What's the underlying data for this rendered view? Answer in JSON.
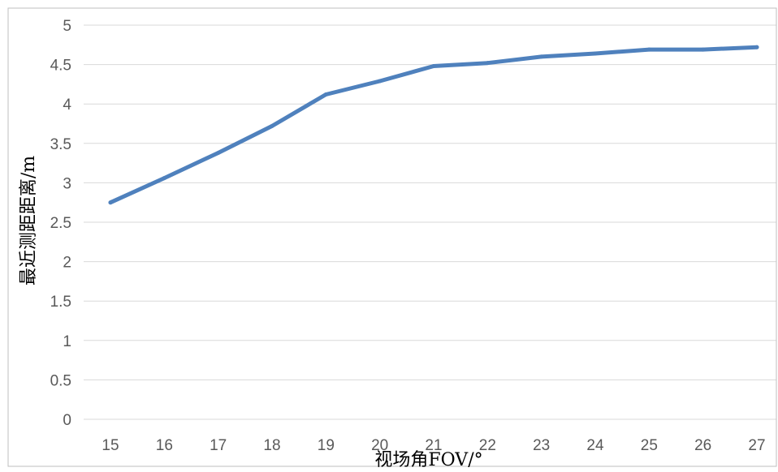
{
  "chart_data": {
    "type": "line",
    "title": "",
    "xlabel": "视场角FOV/°",
    "ylabel": "最近测距距离/m",
    "x": [
      15,
      16,
      17,
      18,
      19,
      20,
      21,
      22,
      23,
      24,
      25,
      26,
      27
    ],
    "series": [
      {
        "values": [
          2.75,
          3.06,
          3.38,
          3.72,
          4.12,
          4.29,
          4.48,
          4.52,
          4.6,
          4.64,
          4.69,
          4.69,
          4.72
        ],
        "color": "#4f81bd"
      }
    ],
    "ylim": [
      0,
      5
    ],
    "yticks": [
      "0",
      "0.5",
      "1",
      "1.5",
      "2",
      "2.5",
      "3",
      "3.5",
      "4",
      "4.5",
      "5"
    ],
    "xticks": [
      "15",
      "16",
      "17",
      "18",
      "19",
      "20",
      "21",
      "22",
      "23",
      "24",
      "25",
      "26",
      "27"
    ],
    "grid": true,
    "legend": "none"
  }
}
